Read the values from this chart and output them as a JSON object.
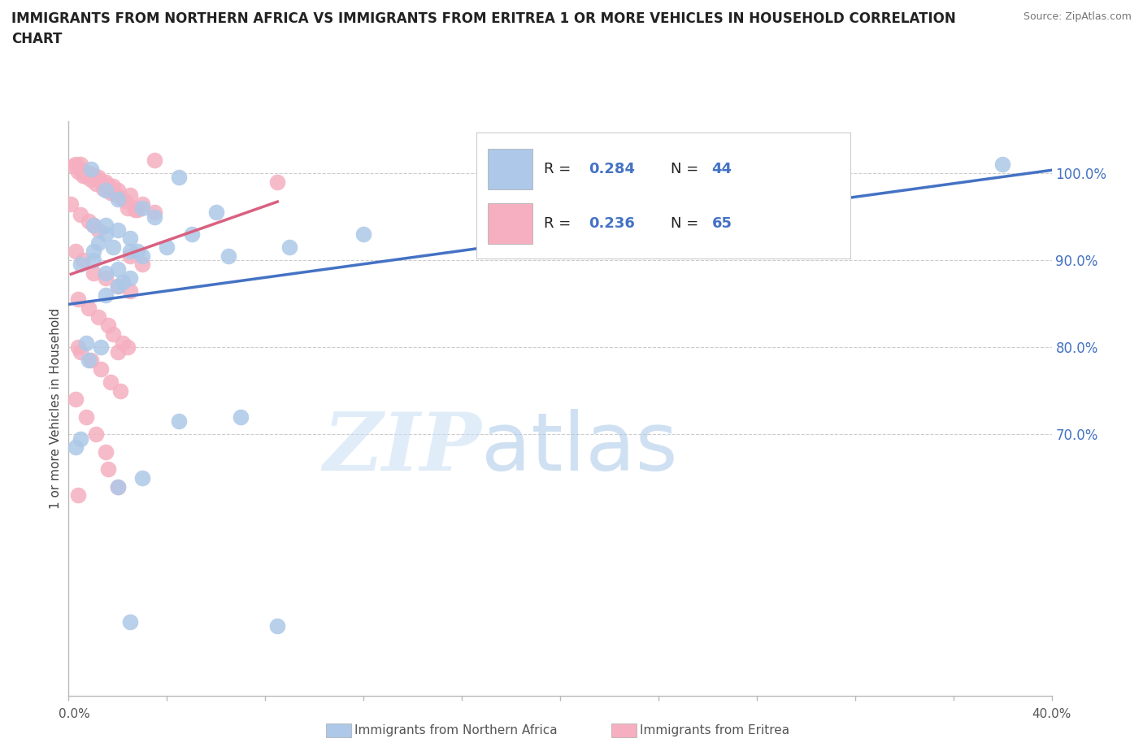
{
  "title_line1": "IMMIGRANTS FROM NORTHERN AFRICA VS IMMIGRANTS FROM ERITREA 1 OR MORE VEHICLES IN HOUSEHOLD CORRELATION",
  "title_line2": "CHART",
  "source_text": "Source: ZipAtlas.com",
  "ylabel": "1 or more Vehicles in Household",
  "xlim": [
    0.0,
    40.0
  ],
  "ylim": [
    40.0,
    106.0
  ],
  "blue_R": 0.284,
  "blue_N": 44,
  "pink_R": 0.236,
  "pink_N": 65,
  "blue_color": "#adc8e8",
  "pink_color": "#f5afc0",
  "blue_line_color": "#4472c4",
  "pink_line_color": "#d96080",
  "watermark_zip": "ZIP",
  "watermark_atlas": "atlas",
  "legend_blue_label": "Immigrants from Northern Africa",
  "legend_pink_label": "Immigrants from Eritrea",
  "blue_scatter_x": [
    0.5,
    0.7,
    0.8,
    1.0,
    1.0,
    1.0,
    1.2,
    1.3,
    1.5,
    1.5,
    1.5,
    1.5,
    1.5,
    1.8,
    2.0,
    2.0,
    2.0,
    2.0,
    2.2,
    2.5,
    2.5,
    2.8,
    3.0,
    3.0,
    3.5,
    4.0,
    4.5,
    4.5,
    5.0,
    6.0,
    6.5,
    7.0,
    8.5,
    9.0,
    12.0,
    2.0,
    2.5,
    3.0,
    0.3,
    0.5,
    0.9,
    2.5,
    25.0,
    38.0
  ],
  "blue_scatter_y": [
    89.5,
    80.5,
    78.5,
    90.0,
    91.0,
    94.0,
    92.0,
    80.0,
    86.0,
    88.5,
    93.0,
    94.0,
    98.0,
    91.5,
    87.0,
    89.0,
    93.5,
    97.0,
    87.5,
    88.0,
    92.5,
    91.0,
    90.5,
    96.0,
    95.0,
    91.5,
    71.5,
    99.5,
    93.0,
    95.5,
    90.5,
    72.0,
    48.0,
    91.5,
    93.0,
    64.0,
    48.5,
    65.0,
    68.5,
    69.5,
    100.5,
    91.0,
    101.5,
    101.0
  ],
  "pink_scatter_x": [
    0.1,
    0.2,
    0.3,
    0.3,
    0.3,
    0.4,
    0.4,
    0.4,
    0.5,
    0.5,
    0.5,
    0.6,
    0.6,
    0.7,
    0.7,
    0.8,
    0.8,
    0.8,
    0.9,
    0.9,
    1.0,
    1.0,
    1.0,
    1.1,
    1.1,
    1.2,
    1.2,
    1.2,
    1.3,
    1.3,
    1.4,
    1.5,
    1.5,
    1.5,
    1.6,
    1.6,
    1.6,
    1.7,
    1.7,
    1.8,
    1.8,
    1.9,
    2.0,
    2.0,
    2.0,
    2.0,
    2.1,
    2.1,
    2.2,
    2.3,
    2.4,
    2.4,
    2.5,
    2.5,
    2.5,
    2.7,
    2.7,
    2.8,
    3.0,
    3.0,
    3.5,
    3.5,
    8.5,
    0.4,
    0.5
  ],
  "pink_scatter_y": [
    96.5,
    100.8,
    74.0,
    91.0,
    101.0,
    85.5,
    100.2,
    63.0,
    79.5,
    95.2,
    100.5,
    90.0,
    99.7,
    72.0,
    99.6,
    84.5,
    94.5,
    100.0,
    78.5,
    99.3,
    88.5,
    94.0,
    99.8,
    70.0,
    98.8,
    83.5,
    93.5,
    99.5,
    77.5,
    99.1,
    98.2,
    68.0,
    88.0,
    99.0,
    82.5,
    98.6,
    66.0,
    76.0,
    97.8,
    81.5,
    98.5,
    97.6,
    64.0,
    87.0,
    98.0,
    79.5,
    75.0,
    97.2,
    80.5,
    96.8,
    80.0,
    96.0,
    86.5,
    90.5,
    97.5,
    95.8,
    96.0,
    95.8,
    89.5,
    96.5,
    95.5,
    101.5,
    99.0,
    80.0,
    101.0
  ]
}
